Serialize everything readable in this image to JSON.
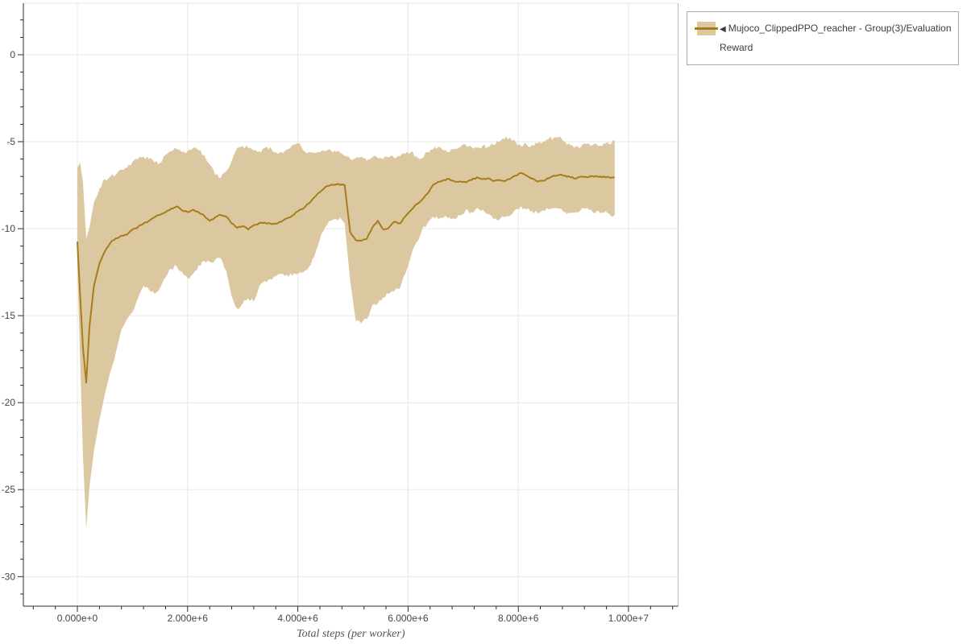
{
  "page": {
    "background": "#ffffff"
  },
  "legend": {
    "icon": "◀",
    "label": "Mujoco_ClippedPPO_reacher - Group(3)/Evaluation Reward"
  },
  "chart_data": {
    "type": "line",
    "title": "",
    "xlabel": "Total steps (per worker)",
    "ylabel": "",
    "grid": true,
    "legend_position": "outside-top-right",
    "x_unit": "millions of steps",
    "x_range": [
      -0.98,
      10.9
    ],
    "y_range": [
      -31.7,
      2.96
    ],
    "x_ticks": {
      "values": [
        0,
        2,
        4,
        6,
        8,
        10
      ],
      "labels": [
        "0.000e+0",
        "2.000e+6",
        "4.000e+6",
        "6.000e+6",
        "8.000e+6",
        "1.000e+7"
      ],
      "minor_step": 0.4
    },
    "y_ticks": {
      "values": [
        0,
        -5,
        -10,
        -15,
        -20,
        -25,
        -30
      ],
      "labels": [
        "0",
        "-5",
        "-10",
        "-15",
        "-20",
        "-25",
        "-30"
      ],
      "minor_step": 1
    },
    "colors": {
      "line": "#a87c1b",
      "band": "#dcc8a0",
      "grid": "#e7e7e7",
      "axis": "#2b2b2b",
      "outline_top": "#e3e3e3",
      "outline_right": "#bdbdbd"
    },
    "series": [
      {
        "name": "Mujoco_ClippedPPO_reacher - Group(3)/Evaluation Reward",
        "line_color": "#a87c1b",
        "band_color": "#dcc8a0",
        "x": [
          0,
          0.05,
          0.1,
          0.16,
          0.22,
          0.3,
          0.4,
          0.5,
          0.6,
          0.7,
          0.8,
          0.9,
          1.0,
          1.1,
          1.2,
          1.3,
          1.4,
          1.5,
          1.6,
          1.7,
          1.8,
          1.9,
          2.0,
          2.1,
          2.2,
          2.3,
          2.4,
          2.5,
          2.6,
          2.7,
          2.8,
          2.9,
          3.0,
          3.1,
          3.2,
          3.3,
          3.4,
          3.5,
          3.6,
          3.7,
          3.8,
          3.9,
          4.0,
          4.1,
          4.2,
          4.3,
          4.4,
          4.5,
          4.6,
          4.7,
          4.8,
          4.85,
          4.95,
          5.05,
          5.15,
          5.25,
          5.35,
          5.45,
          5.55,
          5.65,
          5.75,
          5.85,
          5.95,
          6.05,
          6.15,
          6.25,
          6.35,
          6.45,
          6.55,
          6.65,
          6.75,
          6.85,
          6.95,
          7.05,
          7.15,
          7.25,
          7.35,
          7.45,
          7.55,
          7.65,
          7.75,
          7.85,
          7.95,
          8.05,
          8.15,
          8.25,
          8.35,
          8.45,
          8.55,
          8.65,
          8.75,
          8.85,
          8.95,
          9.05,
          9.15,
          9.25,
          9.35,
          9.45,
          9.55,
          9.65,
          9.75
        ],
        "mean": [
          -10.75,
          -13.8,
          -16.8,
          -18.85,
          -15.6,
          -13.3,
          -12.0,
          -11.3,
          -10.8,
          -10.55,
          -10.4,
          -10.35,
          -10.05,
          -9.9,
          -9.7,
          -9.55,
          -9.35,
          -9.2,
          -9.05,
          -8.85,
          -8.72,
          -8.95,
          -9.05,
          -8.9,
          -9.05,
          -9.25,
          -9.55,
          -9.35,
          -9.2,
          -9.3,
          -9.7,
          -9.95,
          -9.85,
          -10.05,
          -9.8,
          -9.68,
          -9.65,
          -9.7,
          -9.72,
          -9.6,
          -9.4,
          -9.25,
          -9.0,
          -8.85,
          -8.55,
          -8.2,
          -7.9,
          -7.6,
          -7.48,
          -7.45,
          -7.45,
          -7.5,
          -10.2,
          -10.65,
          -10.7,
          -10.6,
          -9.95,
          -9.55,
          -10.05,
          -9.95,
          -9.6,
          -9.7,
          -9.3,
          -8.95,
          -8.6,
          -8.35,
          -8.0,
          -7.5,
          -7.3,
          -7.2,
          -7.15,
          -7.3,
          -7.28,
          -7.34,
          -7.2,
          -7.05,
          -7.15,
          -7.1,
          -7.27,
          -7.2,
          -7.27,
          -7.15,
          -6.95,
          -6.8,
          -6.95,
          -7.12,
          -7.3,
          -7.25,
          -7.1,
          -6.95,
          -6.9,
          -6.95,
          -7.05,
          -7.12,
          -7.0,
          -7.05,
          -6.98,
          -7.02,
          -7.0,
          -7.06,
          -7.05
        ],
        "band_upper": [
          -6.5,
          -6.2,
          -7.3,
          -10.6,
          -9.9,
          -8.5,
          -7.7,
          -7.15,
          -7.0,
          -6.9,
          -6.6,
          -6.5,
          -6.15,
          -6.0,
          -5.85,
          -6.0,
          -6.2,
          -6.22,
          -5.75,
          -5.55,
          -5.42,
          -5.6,
          -5.55,
          -5.37,
          -5.5,
          -5.75,
          -6.3,
          -6.9,
          -7.1,
          -6.7,
          -6.1,
          -5.35,
          -5.26,
          -5.35,
          -5.5,
          -5.55,
          -5.35,
          -5.3,
          -5.6,
          -5.6,
          -5.45,
          -5.2,
          -5.08,
          -5.5,
          -5.6,
          -5.65,
          -5.6,
          -5.55,
          -5.5,
          -5.6,
          -5.7,
          -5.8,
          -6.0,
          -5.95,
          -5.85,
          -6.1,
          -5.9,
          -5.95,
          -6.0,
          -5.9,
          -5.95,
          -5.85,
          -5.7,
          -5.6,
          -5.85,
          -5.95,
          -5.6,
          -5.45,
          -5.3,
          -5.5,
          -5.6,
          -5.4,
          -5.3,
          -5.2,
          -5.3,
          -5.35,
          -5.25,
          -5.3,
          -5.2,
          -5.0,
          -4.85,
          -4.75,
          -5.0,
          -5.25,
          -5.15,
          -5.2,
          -5.1,
          -5.0,
          -4.85,
          -4.75,
          -4.7,
          -5.0,
          -5.2,
          -5.25,
          -5.25,
          -5.1,
          -5.2,
          -5.25,
          -5.1,
          -5.15,
          -4.95
        ],
        "band_lower": [
          -12.0,
          -17.5,
          -23.0,
          -27.25,
          -24.8,
          -22.8,
          -21.0,
          -19.5,
          -18.2,
          -17.1,
          -15.8,
          -15.2,
          -14.8,
          -14.0,
          -13.3,
          -13.5,
          -13.75,
          -13.4,
          -12.8,
          -12.3,
          -12.15,
          -12.5,
          -12.85,
          -12.6,
          -12.1,
          -11.85,
          -11.9,
          -11.8,
          -11.7,
          -12.4,
          -13.9,
          -14.6,
          -14.3,
          -14.0,
          -14.2,
          -13.3,
          -13.0,
          -12.9,
          -12.75,
          -12.6,
          -12.65,
          -12.7,
          -12.6,
          -12.5,
          -12.2,
          -11.6,
          -10.6,
          -9.9,
          -9.55,
          -9.45,
          -9.5,
          -9.7,
          -13.0,
          -15.3,
          -15.45,
          -15.2,
          -14.4,
          -14.3,
          -13.95,
          -13.75,
          -13.6,
          -13.45,
          -12.6,
          -11.6,
          -10.8,
          -10.1,
          -9.7,
          -9.3,
          -9.45,
          -9.35,
          -9.35,
          -9.45,
          -9.25,
          -8.9,
          -9.05,
          -8.8,
          -8.9,
          -9.15,
          -9.45,
          -9.5,
          -9.35,
          -9.25,
          -8.9,
          -8.7,
          -8.9,
          -9.0,
          -9.1,
          -8.95,
          -8.9,
          -8.8,
          -8.85,
          -9.05,
          -9.1,
          -9.05,
          -8.85,
          -8.8,
          -9.05,
          -8.95,
          -9.1,
          -9.15,
          -9.2
        ]
      }
    ]
  }
}
